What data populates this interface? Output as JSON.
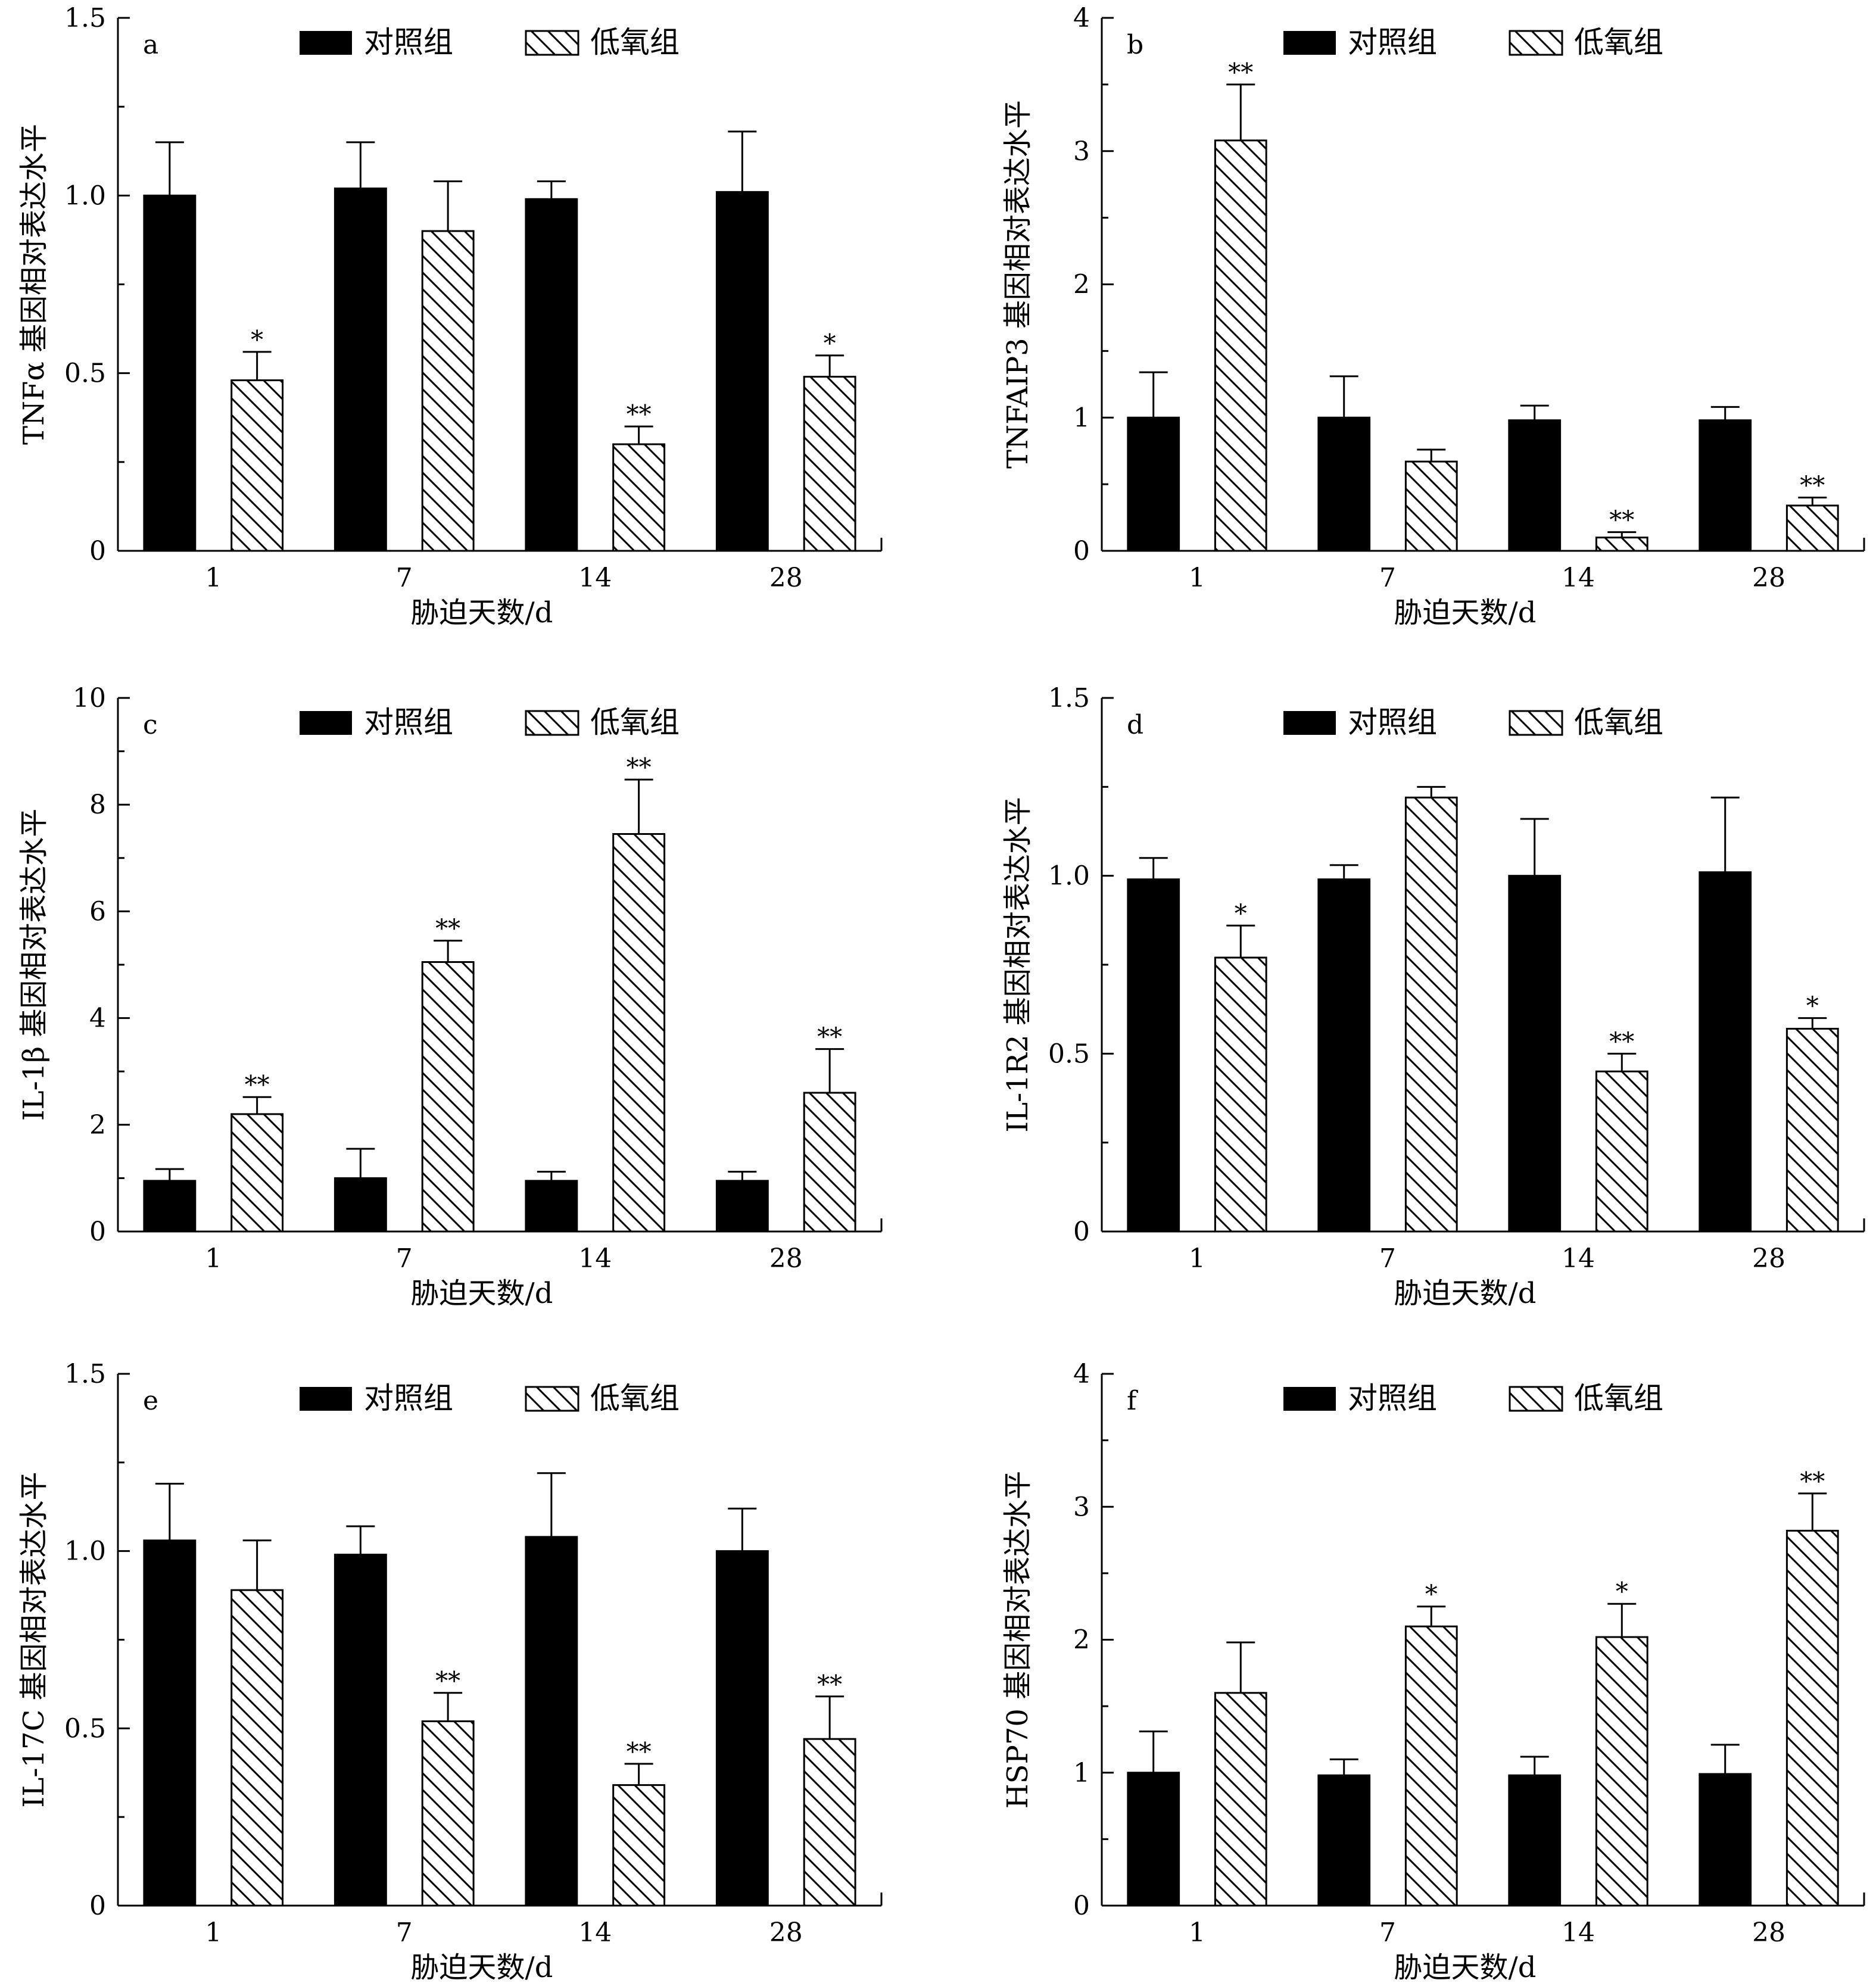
{
  "legend": {
    "control": "对照组",
    "hypoxia": "低氧组"
  },
  "chart_data": [
    {
      "type": "bar",
      "letter": "a",
      "ylabel": "TNFα 基因相对表达水平",
      "xlabel": "胁迫天数/d",
      "ylim": [
        0,
        1.5
      ],
      "yticks": [
        "0",
        "0.5",
        "1.0",
        "1.5"
      ],
      "ytick_values": [
        0,
        0.5,
        1.0,
        1.5
      ],
      "categories": [
        "1",
        "7",
        "14",
        "28"
      ],
      "series": [
        {
          "name": "对照组",
          "values": [
            1.0,
            1.02,
            0.99,
            1.01
          ],
          "errors": [
            0.15,
            0.13,
            0.05,
            0.17
          ],
          "sig": [
            "",
            "",
            "",
            ""
          ]
        },
        {
          "name": "低氧组",
          "values": [
            0.48,
            0.9,
            0.3,
            0.49
          ],
          "errors": [
            0.08,
            0.14,
            0.05,
            0.06
          ],
          "sig": [
            "*",
            "",
            "**",
            "*"
          ]
        }
      ]
    },
    {
      "type": "bar",
      "letter": "b",
      "ylabel": "TNFAIP3 基因相对表达水平",
      "xlabel": "胁迫天数/d",
      "ylim": [
        0,
        4
      ],
      "yticks": [
        "0",
        "1",
        "2",
        "3",
        "4"
      ],
      "ytick_values": [
        0,
        1,
        2,
        3,
        4
      ],
      "categories": [
        "1",
        "7",
        "14",
        "28"
      ],
      "series": [
        {
          "name": "对照组",
          "values": [
            1.0,
            1.0,
            0.98,
            0.98
          ],
          "errors": [
            0.34,
            0.31,
            0.11,
            0.1
          ],
          "sig": [
            "",
            "",
            "",
            ""
          ]
        },
        {
          "name": "低氧组",
          "values": [
            3.08,
            0.67,
            0.1,
            0.34
          ],
          "errors": [
            0.42,
            0.09,
            0.04,
            0.06
          ],
          "sig": [
            "**",
            "",
            "**",
            "**"
          ]
        }
      ]
    },
    {
      "type": "bar",
      "letter": "c",
      "ylabel": "IL-1β 基因相对表达水平",
      "xlabel": "胁迫天数/d",
      "ylim": [
        0,
        10
      ],
      "yticks": [
        "0",
        "2",
        "4",
        "6",
        "8",
        "10"
      ],
      "ytick_values": [
        0,
        2,
        4,
        6,
        8,
        10
      ],
      "categories": [
        "1",
        "7",
        "14",
        "28"
      ],
      "series": [
        {
          "name": "对照组",
          "values": [
            0.95,
            1.0,
            0.95,
            0.95
          ],
          "errors": [
            0.22,
            0.55,
            0.17,
            0.17
          ],
          "sig": [
            "",
            "",
            "",
            ""
          ]
        },
        {
          "name": "低氧组",
          "values": [
            2.2,
            5.05,
            7.45,
            2.6
          ],
          "errors": [
            0.32,
            0.4,
            1.02,
            0.82
          ],
          "sig": [
            "**",
            "**",
            "**",
            "**"
          ]
        }
      ]
    },
    {
      "type": "bar",
      "letter": "d",
      "ylabel": "IL-1R2 基因相对表达水平",
      "xlabel": "胁迫天数/d",
      "ylim": [
        0,
        1.5
      ],
      "yticks": [
        "0",
        "0.5",
        "1.0",
        "1.5"
      ],
      "ytick_values": [
        0,
        0.5,
        1.0,
        1.5
      ],
      "categories": [
        "1",
        "7",
        "14",
        "28"
      ],
      "series": [
        {
          "name": "对照组",
          "values": [
            0.99,
            0.99,
            1.0,
            1.01
          ],
          "errors": [
            0.06,
            0.04,
            0.16,
            0.21
          ],
          "sig": [
            "",
            "",
            "",
            ""
          ]
        },
        {
          "name": "低氧组",
          "values": [
            0.77,
            1.22,
            0.45,
            0.57
          ],
          "errors": [
            0.09,
            0.03,
            0.05,
            0.03
          ],
          "sig": [
            "*",
            "",
            "**",
            "*"
          ]
        }
      ]
    },
    {
      "type": "bar",
      "letter": "e",
      "ylabel": "IL-17C 基因相对表达水平",
      "xlabel": "胁迫天数/d",
      "ylim": [
        0,
        1.5
      ],
      "yticks": [
        "0",
        "0.5",
        "1.0",
        "1.5"
      ],
      "ytick_values": [
        0,
        0.5,
        1.0,
        1.5
      ],
      "categories": [
        "1",
        "7",
        "14",
        "28"
      ],
      "series": [
        {
          "name": "对照组",
          "values": [
            1.03,
            0.99,
            1.04,
            1.0
          ],
          "errors": [
            0.16,
            0.08,
            0.18,
            0.12
          ],
          "sig": [
            "",
            "",
            "",
            ""
          ]
        },
        {
          "name": "低氧组",
          "values": [
            0.89,
            0.52,
            0.34,
            0.47
          ],
          "errors": [
            0.14,
            0.08,
            0.06,
            0.12
          ],
          "sig": [
            "",
            "**",
            "**",
            "**"
          ]
        }
      ]
    },
    {
      "type": "bar",
      "letter": "f",
      "ylabel": "HSP70 基因相对表达水平",
      "xlabel": "胁迫天数/d",
      "ylim": [
        0,
        4
      ],
      "yticks": [
        "0",
        "1",
        "2",
        "3",
        "4"
      ],
      "ytick_values": [
        0,
        1,
        2,
        3,
        4
      ],
      "categories": [
        "1",
        "7",
        "14",
        "28"
      ],
      "series": [
        {
          "name": "对照组",
          "values": [
            1.0,
            0.98,
            0.98,
            0.99
          ],
          "errors": [
            0.31,
            0.12,
            0.14,
            0.22
          ],
          "sig": [
            "",
            "",
            "",
            ""
          ]
        },
        {
          "name": "低氧组",
          "values": [
            1.6,
            2.1,
            2.02,
            2.82
          ],
          "errors": [
            0.38,
            0.15,
            0.25,
            0.28
          ],
          "sig": [
            "",
            "*",
            "*",
            "**"
          ]
        }
      ]
    }
  ]
}
